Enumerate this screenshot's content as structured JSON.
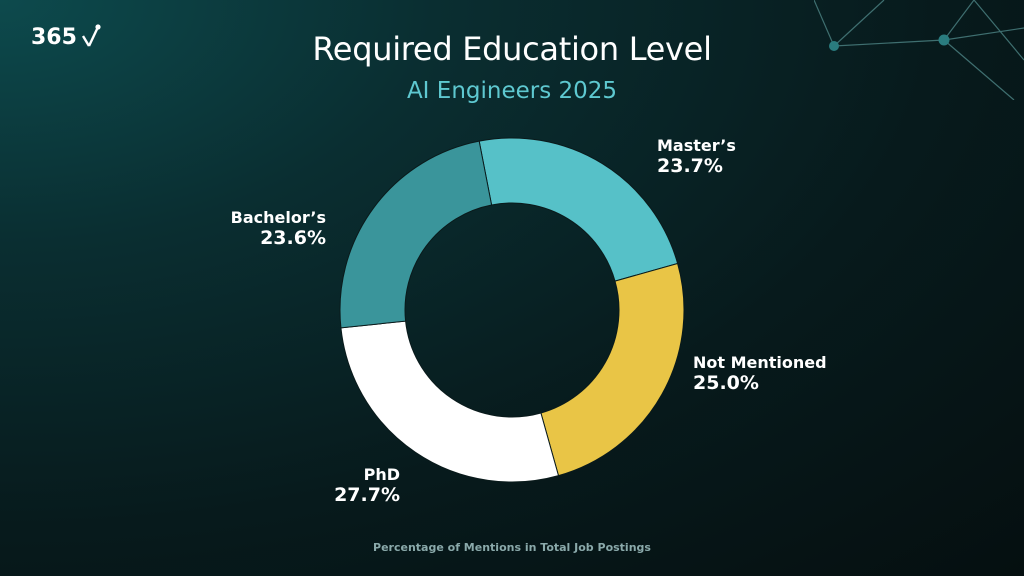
{
  "logo": {
    "text": "365",
    "icon": "checkmark-network-icon"
  },
  "decoration": {
    "icon": "network-lines-icon"
  },
  "chart_data": {
    "type": "pie",
    "style": "donut",
    "title": "Required Education Level",
    "subtitle": "AI Engineers 2025",
    "slices": [
      {
        "label": "Master’s",
        "value": 23.7,
        "display": "23.7%",
        "color": "#56c1c8"
      },
      {
        "label": "Not Mentioned",
        "value": 25.0,
        "display": "25.0%",
        "color": "#e9c546"
      },
      {
        "label": "PhD",
        "value": 27.7,
        "display": "27.7%",
        "color": "#ffffff"
      },
      {
        "label": "Bachelor’s",
        "value": 23.6,
        "display": "23.6%",
        "color": "#3a959b"
      }
    ],
    "start_angle_deg": -11,
    "direction": "clockwise",
    "footnote": "Percentage of Mentions in Total Job Postings"
  }
}
